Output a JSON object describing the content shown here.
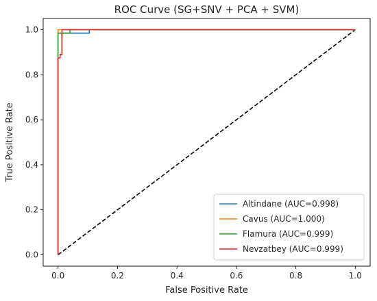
{
  "chart_data": {
    "type": "line",
    "title": "ROC Curve (SG+SNV + PCA + SVM)",
    "xlabel": "False Positive Rate",
    "ylabel": "True Positive Rate",
    "xlim": [
      -0.05,
      1.05
    ],
    "ylim": [
      -0.05,
      1.05
    ],
    "xticks": [
      "0.0",
      "0.2",
      "0.4",
      "0.6",
      "0.8",
      "1.0"
    ],
    "yticks": [
      "0.0",
      "0.2",
      "0.4",
      "0.6",
      "0.8",
      "1.0"
    ],
    "grid": false,
    "legend_position": "lower-right",
    "series": [
      {
        "name": "Altindane (AUC=0.998)",
        "color": "#1f77b4",
        "x": [
          0.0,
          0.0,
          0.0,
          0.0,
          0.105,
          0.105,
          1.0
        ],
        "y": [
          0.0,
          0.88,
          0.88,
          0.985,
          0.985,
          1.0,
          1.0
        ]
      },
      {
        "name": "Cavus (AUC=1.000)",
        "color": "#ff7f0e",
        "x": [
          0.0,
          0.0,
          1.0
        ],
        "y": [
          0.0,
          1.0,
          1.0
        ]
      },
      {
        "name": "Flamura (AUC=0.999)",
        "color": "#2ca02c",
        "x": [
          0.0,
          0.0,
          0.0,
          0.0,
          0.04,
          0.04,
          1.0
        ],
        "y": [
          0.0,
          0.885,
          0.885,
          0.985,
          0.985,
          1.0,
          1.0
        ]
      },
      {
        "name": "Nevzatbey (AUC=0.999)",
        "color": "#d62728",
        "x": [
          0.0,
          0.0,
          0.007,
          0.007,
          0.013,
          0.013,
          1.0
        ],
        "y": [
          0.0,
          0.875,
          0.875,
          0.89,
          0.89,
          1.0,
          1.0
        ]
      }
    ],
    "diagonal": {
      "x": [
        0,
        1
      ],
      "y": [
        0,
        1
      ],
      "color": "#000000",
      "style": "dashed"
    }
  }
}
